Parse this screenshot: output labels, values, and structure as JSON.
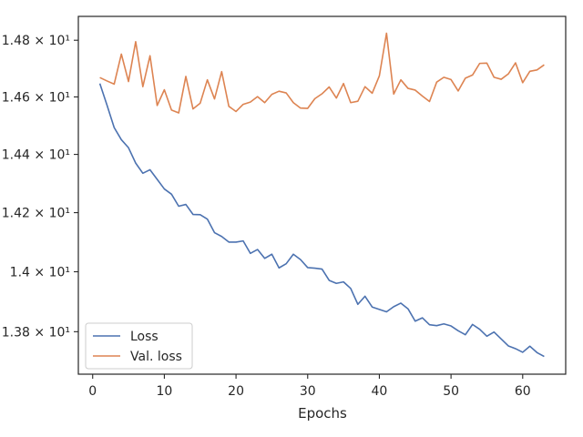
{
  "chart_data": {
    "type": "line",
    "title": "",
    "xlabel": "Epochs",
    "ylabel": "",
    "xlim": [
      -2,
      66
    ],
    "ylim": [
      13.66,
      14.885
    ],
    "yscale": "log",
    "grid": false,
    "legend_position": "lower-left",
    "x_ticks": [
      0,
      10,
      20,
      30,
      40,
      50,
      60
    ],
    "x_tick_labels": [
      "0",
      "10",
      "20",
      "30",
      "40",
      "50",
      "60"
    ],
    "y_ticks": [
      14.8,
      14.6,
      14.4,
      14.2,
      14.0,
      13.8
    ],
    "y_tick_labels": [
      "1.48 × 10¹",
      "1.46 × 10¹",
      "1.44 × 10¹",
      "1.42 × 10¹",
      "1.4 × 10¹",
      "1.38 × 10¹"
    ],
    "x": [
      1,
      2,
      3,
      4,
      5,
      6,
      7,
      8,
      9,
      10,
      11,
      12,
      13,
      14,
      15,
      16,
      17,
      18,
      19,
      20,
      21,
      22,
      23,
      24,
      25,
      26,
      27,
      28,
      29,
      30,
      31,
      32,
      33,
      34,
      35,
      36,
      37,
      38,
      39,
      40,
      41,
      42,
      43,
      44,
      45,
      46,
      47,
      48,
      49,
      50,
      51,
      52,
      53,
      54,
      55,
      56,
      57,
      58,
      59,
      60,
      61,
      62,
      63
    ],
    "series": [
      {
        "name": "Loss",
        "color": "#4c72b0",
        "values": [
          14.647,
          14.571,
          14.493,
          14.451,
          14.423,
          14.37,
          14.335,
          14.347,
          14.314,
          14.281,
          14.263,
          14.222,
          14.228,
          14.194,
          14.193,
          14.178,
          14.132,
          14.119,
          14.1,
          14.1,
          14.104,
          14.062,
          14.075,
          14.045,
          14.059,
          14.013,
          14.027,
          14.059,
          14.041,
          14.014,
          14.012,
          14.009,
          13.971,
          13.961,
          13.966,
          13.944,
          13.891,
          13.918,
          13.882,
          13.874,
          13.866,
          13.883,
          13.895,
          13.876,
          13.835,
          13.846,
          13.823,
          13.82,
          13.826,
          13.819,
          13.803,
          13.79,
          13.824,
          13.808,
          13.785,
          13.799,
          13.776,
          13.753,
          13.744,
          13.732,
          13.752,
          13.731,
          13.718
        ]
      },
      {
        "name": "Val. loss",
        "color": "#dd8452",
        "values": [
          14.668,
          14.656,
          14.645,
          14.751,
          14.654,
          14.795,
          14.636,
          14.745,
          14.57,
          14.625,
          14.554,
          14.544,
          14.672,
          14.558,
          14.578,
          14.66,
          14.593,
          14.689,
          14.567,
          14.549,
          14.574,
          14.582,
          14.601,
          14.58,
          14.609,
          14.62,
          14.614,
          14.58,
          14.561,
          14.56,
          14.594,
          14.611,
          14.635,
          14.596,
          14.647,
          14.58,
          14.585,
          14.636,
          14.613,
          14.674,
          14.825,
          14.61,
          14.66,
          14.63,
          14.624,
          14.603,
          14.584,
          14.652,
          14.669,
          14.661,
          14.621,
          14.666,
          14.677,
          14.718,
          14.719,
          14.669,
          14.662,
          14.681,
          14.72,
          14.65,
          14.69,
          14.695,
          14.713
        ]
      }
    ]
  }
}
